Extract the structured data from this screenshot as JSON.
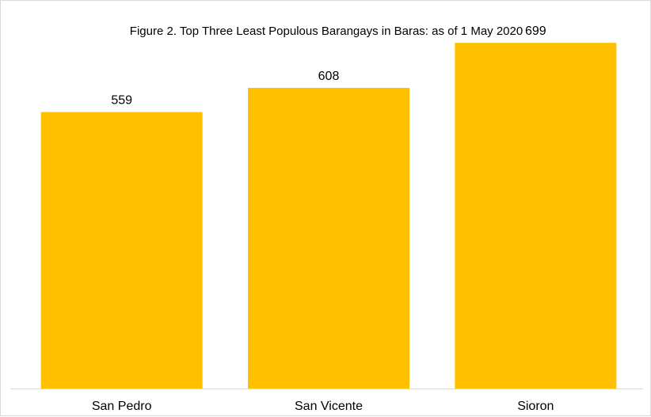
{
  "chart_data": {
    "type": "bar",
    "title": "Figure 2. Top Three Least Populous Barangays in Baras: as of 1 May 2020",
    "xlabel": "",
    "ylabel": "",
    "categories": [
      "San Pedro",
      "San Vicente",
      "Sioron"
    ],
    "values": [
      559,
      608,
      699
    ],
    "data_labels": [
      "559",
      "608",
      "699"
    ],
    "ylim": [
      0,
      760
    ],
    "grid": false,
    "legend": "none",
    "bar_color": "#FFC000",
    "axis_color": "#d9d9d9"
  }
}
